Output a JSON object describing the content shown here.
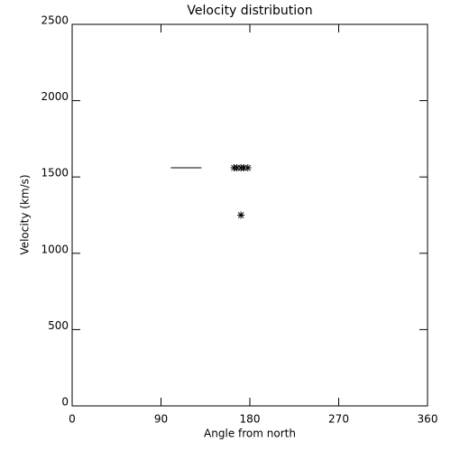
{
  "chart_data": {
    "type": "scatter",
    "title": "Velocity distribution",
    "x_label": "Angle from north",
    "y_label": "Velocity (km/s)",
    "xlim": [
      0,
      360
    ],
    "xticks": [
      0,
      90,
      180,
      270,
      360
    ],
    "ylim": [
      0,
      2500
    ],
    "yticks": [
      0,
      500,
      1000,
      1500,
      2000,
      2500
    ],
    "color": "#000000",
    "series": [
      {
        "type": "scatter",
        "marker": "asterisk",
        "x": [
          164,
          167,
          171,
          174,
          178,
          171
        ],
        "values": [
          1560,
          1560,
          1560,
          1560,
          1560,
          1250
        ]
      },
      {
        "type": "line",
        "x": [
          100,
          131
        ],
        "values": [
          1560,
          1560
        ]
      }
    ]
  }
}
